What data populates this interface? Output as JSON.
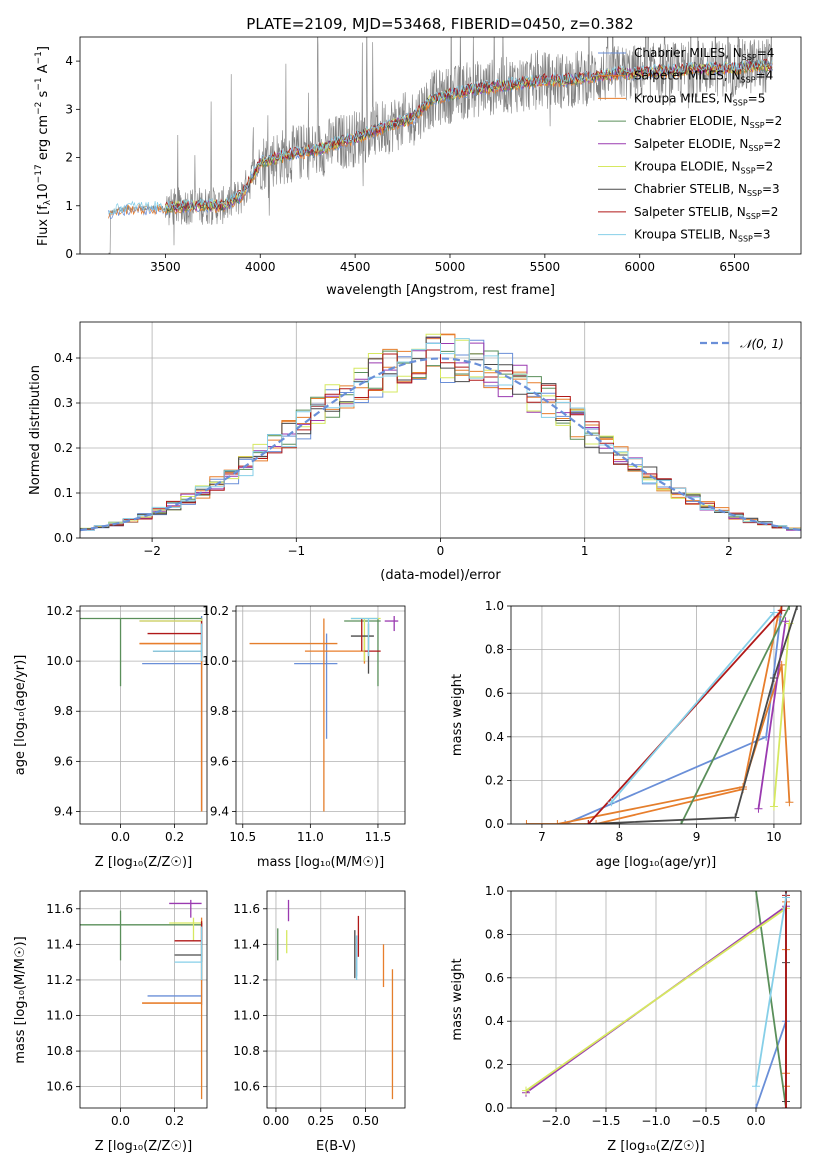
{
  "figure": {
    "title": "PLATE=2109, MJD=53468, FIBERID=0450, z=0.382"
  },
  "colors": {
    "Chabrier MILES": "#6a8fd8",
    "Salpeter MILES": "#e47e2c",
    "Kroupa MILES": "#e87e2c",
    "Chabrier ELODIE": "#5a8f5a",
    "Salpeter ELODIE": "#9a3ab0",
    "Kroupa ELODIE": "#d6e860",
    "Chabrier STELIB": "#4a4a4a",
    "Salpeter STELIB": "#b01818",
    "Kroupa STELIB": "#86cfe8",
    "Data": "#808080",
    "Normal": "#6a8fd8"
  },
  "chart_data": [
    {
      "type": "line",
      "title": "PLATE=2109, MJD=53468, FIBERID=0450, z=0.382",
      "xlabel": "wavelength [Angstrom, rest frame]",
      "ylabel": "Flux [f_λ 10^-17 erg cm^-2 s^-1 A^-1]",
      "xlim": [
        3050,
        6850
      ],
      "ylim": [
        0,
        4.5
      ],
      "xticks": [
        3500,
        4000,
        4500,
        5000,
        5500,
        6000,
        6500
      ],
      "yticks": [
        0,
        1,
        2,
        3,
        4
      ],
      "legend_position": "top-right",
      "legend": [
        {
          "label": "Chabrier MILES, N",
          "sub": "SSP",
          "suffix": "=4"
        },
        {
          "label": "Salpeter MILES, N",
          "sub": "SSP",
          "suffix": "=4"
        },
        {
          "label": "Kroupa MILES, N",
          "sub": "SSP",
          "suffix": "=5"
        },
        {
          "label": "Chabrier ELODIE, N",
          "sub": "SSP",
          "suffix": "=2"
        },
        {
          "label": "Salpeter ELODIE, N",
          "sub": "SSP",
          "suffix": "=2"
        },
        {
          "label": "Kroupa ELODIE, N",
          "sub": "SSP",
          "suffix": "=2"
        },
        {
          "label": "Chabrier STELIB, N",
          "sub": "SSP",
          "suffix": "=3"
        },
        {
          "label": "Salpeter STELIB, N",
          "sub": "SSP",
          "suffix": "=2"
        },
        {
          "label": "Kroupa STELIB, N",
          "sub": "SSP",
          "suffix": "=3"
        }
      ],
      "continuum_x": [
        3200,
        3300,
        3400,
        3500,
        3600,
        3700,
        3800,
        3900,
        4000,
        4100,
        4200,
        4300,
        4400,
        4500,
        4600,
        4700,
        4800,
        4900,
        5000,
        5100,
        5200,
        5300,
        5400,
        5500,
        5600,
        5700,
        5800,
        5900,
        6000,
        6100,
        6200,
        6300,
        6400,
        6500,
        6600,
        6700
      ],
      "continuum_y": [
        0.85,
        0.95,
        0.95,
        0.95,
        1.0,
        1.0,
        1.0,
        1.2,
        1.9,
        2.0,
        2.1,
        2.15,
        2.3,
        2.4,
        2.55,
        2.7,
        2.8,
        3.2,
        3.3,
        3.4,
        3.45,
        3.5,
        3.55,
        3.6,
        3.6,
        3.65,
        3.7,
        3.75,
        3.75,
        3.8,
        3.8,
        3.85,
        3.85,
        3.85,
        3.9,
        3.9
      ]
    },
    {
      "type": "bar",
      "xlabel": "(data-model)/error",
      "ylabel": "Normed distribution",
      "xlim": [
        -2.5,
        2.5
      ],
      "ylim": [
        0,
        0.48
      ],
      "xticks": [
        -2,
        -1,
        0,
        1,
        2
      ],
      "yticks": [
        0.0,
        0.1,
        0.2,
        0.3,
        0.4
      ],
      "legend": [
        "𝒩(0, 1)"
      ],
      "bin_width": 0.1,
      "bin_start": -2.5
    },
    {
      "type": "scatter",
      "xlabel": "Z [log10(Z/Z☉)]",
      "ylabel": "age [log10(age/yr)]",
      "xlim": [
        -0.15,
        0.32
      ],
      "ylim": [
        9.35,
        10.22
      ],
      "xticks": [
        0.0,
        0.2
      ],
      "yticks": [
        9.4,
        9.6,
        9.8,
        10.0,
        10.2
      ]
    },
    {
      "type": "scatter",
      "xlabel": "mass [log10(M/M☉)]",
      "ylabel": "",
      "xlim": [
        10.45,
        11.7
      ],
      "ylim": [
        9.35,
        10.22
      ],
      "xticks": [
        10.5,
        11.0,
        11.5
      ],
      "yticks": [
        9.4,
        9.6,
        9.8,
        10.0,
        10.2
      ]
    },
    {
      "type": "line",
      "xlabel": "age [log10(age/yr)]",
      "ylabel": "mass weight",
      "xlim": [
        6.6,
        10.35
      ],
      "ylim": [
        0,
        1
      ],
      "xticks": [
        7,
        8,
        9,
        10
      ],
      "yticks": [
        0.0,
        0.2,
        0.4,
        0.6,
        0.8,
        1.0
      ]
    },
    {
      "type": "scatter",
      "xlabel": "Z [log10(Z/Z☉)]",
      "ylabel": "mass [log10(M/M☉)]",
      "xlim": [
        -0.15,
        0.32
      ],
      "ylim": [
        10.48,
        11.7
      ],
      "xticks": [
        0.0,
        0.2
      ],
      "yticks": [
        10.6,
        10.8,
        11.0,
        11.2,
        11.4,
        11.6
      ]
    },
    {
      "type": "scatter",
      "xlabel": "E(B-V)",
      "ylabel": "",
      "xlim": [
        -0.05,
        0.72
      ],
      "ylim": [
        10.48,
        11.7
      ],
      "xticks": [
        0.0,
        0.25,
        0.5
      ],
      "yticks": [
        10.6,
        10.8,
        11.0,
        11.2,
        11.4,
        11.6
      ]
    },
    {
      "type": "line",
      "xlabel": "Z [log10(Z/Z☉)]",
      "ylabel": "mass weight",
      "xlim": [
        -2.45,
        0.45
      ],
      "ylim": [
        0,
        1
      ],
      "xticks": [
        -2.0,
        -1.5,
        -1.0,
        -0.5,
        0.0
      ],
      "yticks": [
        0.0,
        0.2,
        0.4,
        0.6,
        0.8,
        1.0
      ]
    }
  ],
  "models": [
    {
      "name": "Chabrier MILES",
      "Z": [
        0.1,
        0.3
      ],
      "Z_lo": 0.1,
      "Z_hi": 0.3,
      "age": 9.99,
      "age_lo": 9.6,
      "age_hi": 10.17,
      "mass": 11.1,
      "mass_lo": 10.9,
      "mass_hi": 11.1,
      "ebv": 0.65
    },
    {
      "name": "Kroupa MILES",
      "age": 10.07,
      "mass": 11.07
    }
  ]
}
